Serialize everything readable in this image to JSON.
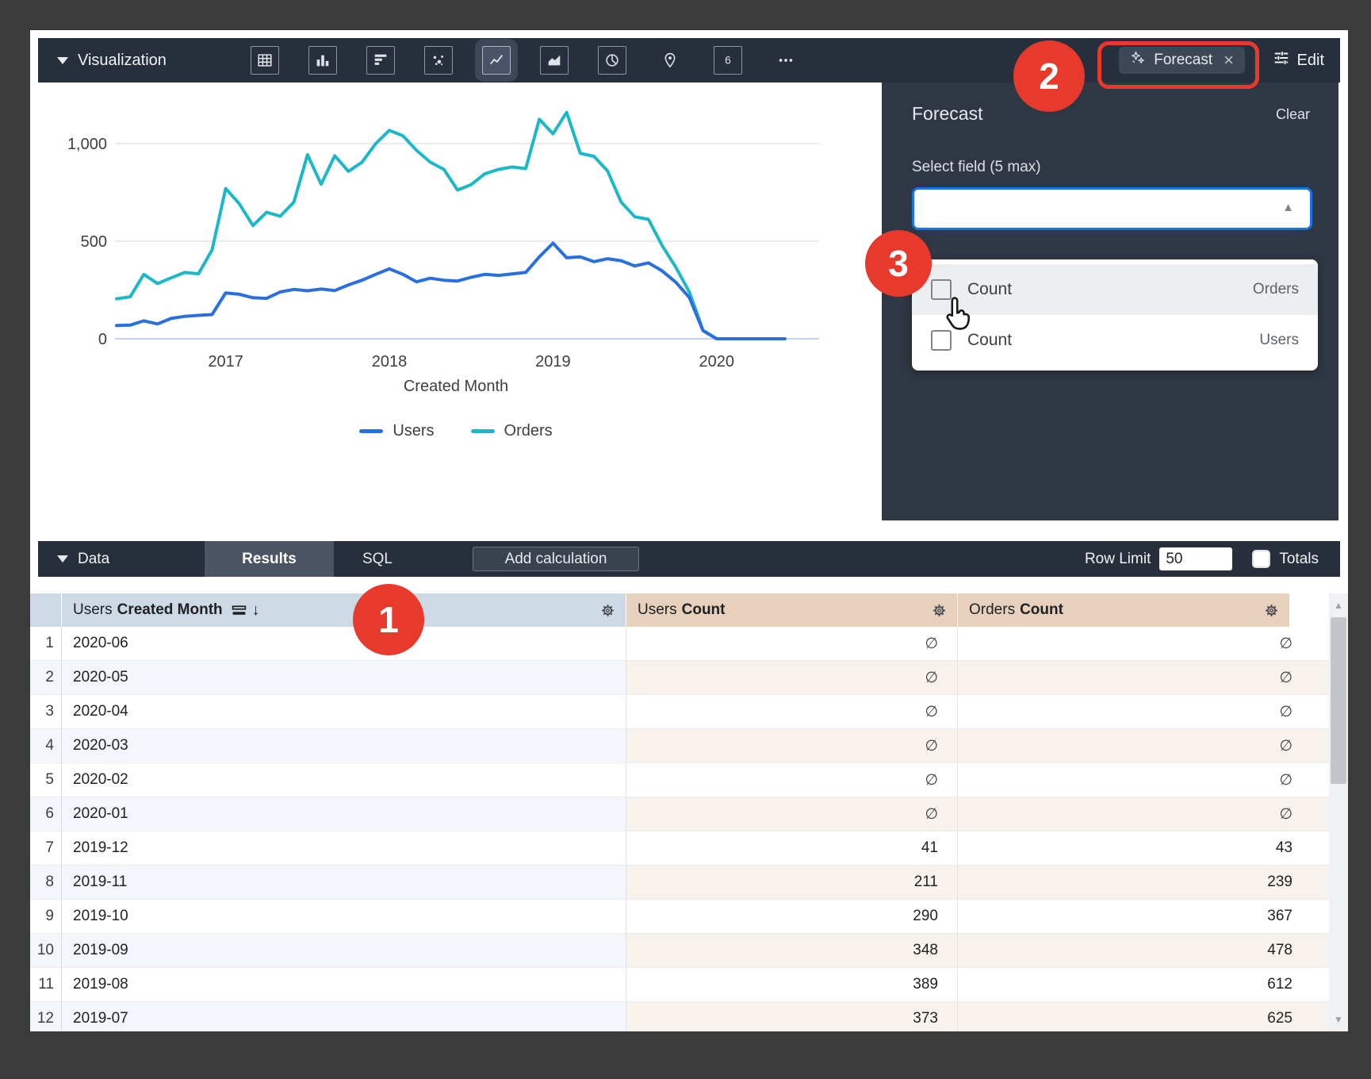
{
  "toolbar": {
    "visualization_label": "Visualization",
    "viz_icons": [
      {
        "name": "table",
        "selected": false
      },
      {
        "name": "bar-chart",
        "selected": false
      },
      {
        "name": "row-chart",
        "selected": false
      },
      {
        "name": "scatter",
        "selected": false
      },
      {
        "name": "line-chart",
        "selected": true
      },
      {
        "name": "area-chart",
        "selected": false
      },
      {
        "name": "pie-chart",
        "selected": false
      },
      {
        "name": "map-pin",
        "selected": false,
        "boxless": true
      },
      {
        "name": "single-value",
        "selected": false
      },
      {
        "name": "more",
        "selected": false,
        "boxless": true
      }
    ],
    "forecast_label": "Forecast",
    "edit_label": "Edit"
  },
  "forecast_panel": {
    "title": "Forecast",
    "clear_label": "Clear",
    "select_label": "Select field (5 max)",
    "options": [
      {
        "label": "Count",
        "view": "Orders",
        "checked": false,
        "hovered": true
      },
      {
        "label": "Count",
        "view": "Users",
        "checked": false,
        "hovered": false
      }
    ]
  },
  "annotations": {
    "step1": "1",
    "step2": "2",
    "step3": "3"
  },
  "data_bar": {
    "data_label": "Data",
    "results_label": "Results",
    "sql_label": "SQL",
    "add_calculation_label": "Add calculation",
    "row_limit_label": "Row Limit",
    "row_limit_value": "50",
    "totals_label": "Totals"
  },
  "table": {
    "columns": [
      {
        "view": "Users",
        "field": "Created Month",
        "sorted_desc": true
      },
      {
        "view": "Users",
        "field": "Count"
      },
      {
        "view": "Orders",
        "field": "Count"
      }
    ],
    "rows": [
      {
        "n": "1",
        "month": "2020-06",
        "users": "∅",
        "orders": "∅"
      },
      {
        "n": "2",
        "month": "2020-05",
        "users": "∅",
        "orders": "∅"
      },
      {
        "n": "3",
        "month": "2020-04",
        "users": "∅",
        "orders": "∅"
      },
      {
        "n": "4",
        "month": "2020-03",
        "users": "∅",
        "orders": "∅"
      },
      {
        "n": "5",
        "month": "2020-02",
        "users": "∅",
        "orders": "∅"
      },
      {
        "n": "6",
        "month": "2020-01",
        "users": "∅",
        "orders": "∅"
      },
      {
        "n": "7",
        "month": "2019-12",
        "users": "41",
        "orders": "43"
      },
      {
        "n": "8",
        "month": "2019-11",
        "users": "211",
        "orders": "239"
      },
      {
        "n": "9",
        "month": "2019-10",
        "users": "290",
        "orders": "367"
      },
      {
        "n": "10",
        "month": "2019-09",
        "users": "348",
        "orders": "478"
      },
      {
        "n": "11",
        "month": "2019-08",
        "users": "389",
        "orders": "612"
      },
      {
        "n": "12",
        "month": "2019-07",
        "users": "373",
        "orders": "625"
      }
    ]
  },
  "chart_data": {
    "type": "line",
    "x": [
      "2016-05",
      "2016-06",
      "2016-07",
      "2016-08",
      "2016-09",
      "2016-10",
      "2016-11",
      "2016-12",
      "2017-01",
      "2017-02",
      "2017-03",
      "2017-04",
      "2017-05",
      "2017-06",
      "2017-07",
      "2017-08",
      "2017-09",
      "2017-10",
      "2017-11",
      "2017-12",
      "2018-01",
      "2018-02",
      "2018-03",
      "2018-04",
      "2018-05",
      "2018-06",
      "2018-07",
      "2018-08",
      "2018-09",
      "2018-10",
      "2018-11",
      "2018-12",
      "2019-01",
      "2019-02",
      "2019-03",
      "2019-04",
      "2019-05",
      "2019-06",
      "2019-07",
      "2019-08",
      "2019-09",
      "2019-10",
      "2019-11",
      "2019-12",
      "2020-01",
      "2020-02",
      "2020-03",
      "2020-04",
      "2020-05",
      "2020-06"
    ],
    "series": [
      {
        "name": "Users",
        "color": "#2a6fe0",
        "values": [
          68,
          70,
          92,
          76,
          104,
          115,
          120,
          124,
          235,
          228,
          210,
          207,
          240,
          253,
          246,
          255,
          247,
          276,
          300,
          330,
          358,
          330,
          292,
          310,
          300,
          296,
          315,
          330,
          325,
          332,
          340,
          420,
          490,
          415,
          420,
          395,
          410,
          400,
          373,
          389,
          348,
          290,
          211,
          41,
          null,
          null,
          null,
          null,
          null,
          null
        ]
      },
      {
        "name": "Orders",
        "color": "#1db8c8",
        "values": [
          205,
          215,
          330,
          283,
          312,
          340,
          333,
          455,
          770,
          692,
          580,
          648,
          628,
          700,
          943,
          792,
          938,
          858,
          905,
          1000,
          1068,
          1040,
          965,
          905,
          868,
          762,
          790,
          845,
          868,
          880,
          872,
          1125,
          1050,
          1160,
          950,
          935,
          860,
          700,
          625,
          612,
          478,
          367,
          239,
          43,
          null,
          null,
          null,
          null,
          null,
          null
        ]
      }
    ],
    "xlabel": "Created Month",
    "ylabel": "",
    "ylim": [
      0,
      1200
    ],
    "yticks": [
      {
        "value": 0,
        "label": "0"
      },
      {
        "value": 500,
        "label": "500"
      },
      {
        "value": 1000,
        "label": "1,000"
      }
    ],
    "xticks": [
      {
        "month": "2017-01",
        "label": "2017"
      },
      {
        "month": "2018-01",
        "label": "2018"
      },
      {
        "month": "2019-01",
        "label": "2019"
      },
      {
        "month": "2020-01",
        "label": "2020"
      }
    ],
    "grid": true,
    "legend_position": "bottom"
  },
  "colors": {
    "accent_blue": "#1a73e8",
    "users_line": "#2a6fe0",
    "orders_line": "#1db8c8",
    "annotation_red": "#e8392d",
    "toolbar_bg": "#272f3d",
    "panel_bg": "#2f3744",
    "dimension_header_bg": "#cdd9e5",
    "measure_header_bg": "#e7d1bd"
  }
}
